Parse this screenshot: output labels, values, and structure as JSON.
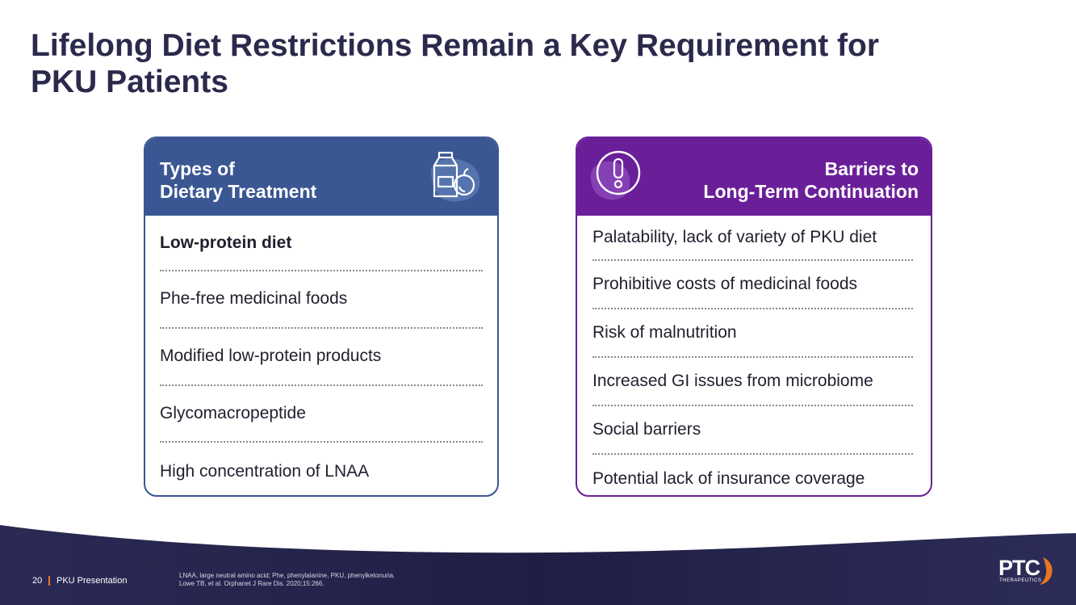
{
  "title_line1": "Lifelong Diet Restrictions Remain a Key Requirement for",
  "title_line2": "PKU Patients",
  "left_card": {
    "heading_line1": "Types of",
    "heading_line2": "Dietary Treatment",
    "icon": "food-and-drink-icon",
    "items": [
      "Low-protein diet",
      "Phe-free medicinal foods",
      "Modified low-protein products",
      "Glycomacropeptide",
      "High concentration of LNAA"
    ]
  },
  "right_card": {
    "heading_line1": "Barriers to",
    "heading_line2": "Long-Term Continuation",
    "icon": "exclamation-icon",
    "items": [
      "Palatability, lack of variety of PKU diet",
      "Prohibitive costs of medicinal foods",
      "Risk of malnutrition",
      "Increased GI issues from microbiome",
      "Social barriers",
      "Potential lack of insurance coverage"
    ]
  },
  "footer": {
    "page_number": "20",
    "presentation_title": "PKU Presentation",
    "note_line1": "LNAA, large neutral amino acid; Phe, phenylalanine, PKU, phenylketonuria.",
    "note_line2": "Lowe TB, et al. Orphanet J Rare Dis. 2020;15:266."
  },
  "logo": {
    "name": "PTC",
    "subtitle": "THERAPEUTICS"
  },
  "colors": {
    "title": "#2b2a4c",
    "left_accent": "#3a5793",
    "right_accent": "#6a1f99",
    "footer_dark": "#23234a",
    "logo_orange": "#e87722"
  }
}
